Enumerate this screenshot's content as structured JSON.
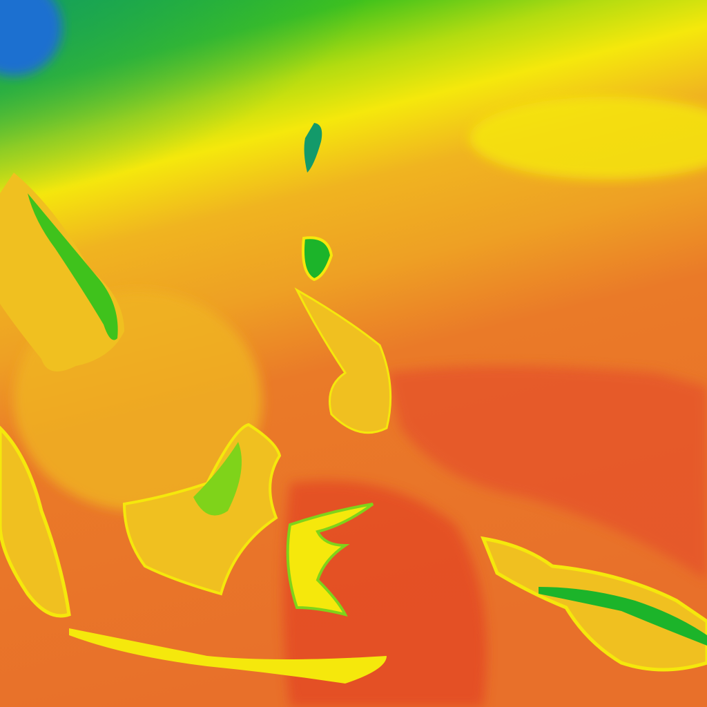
{
  "map": {
    "palette": {
      "cold_blue": "#1a6fd0",
      "teal": "#139a6a",
      "green": "#1cb42a",
      "light_green": "#7fd31a",
      "yellow": "#f5e80c",
      "amber": "#f0b420",
      "orange": "#ea7a28",
      "red_orange": "#e5502a",
      "red": "#e23a20"
    }
  }
}
